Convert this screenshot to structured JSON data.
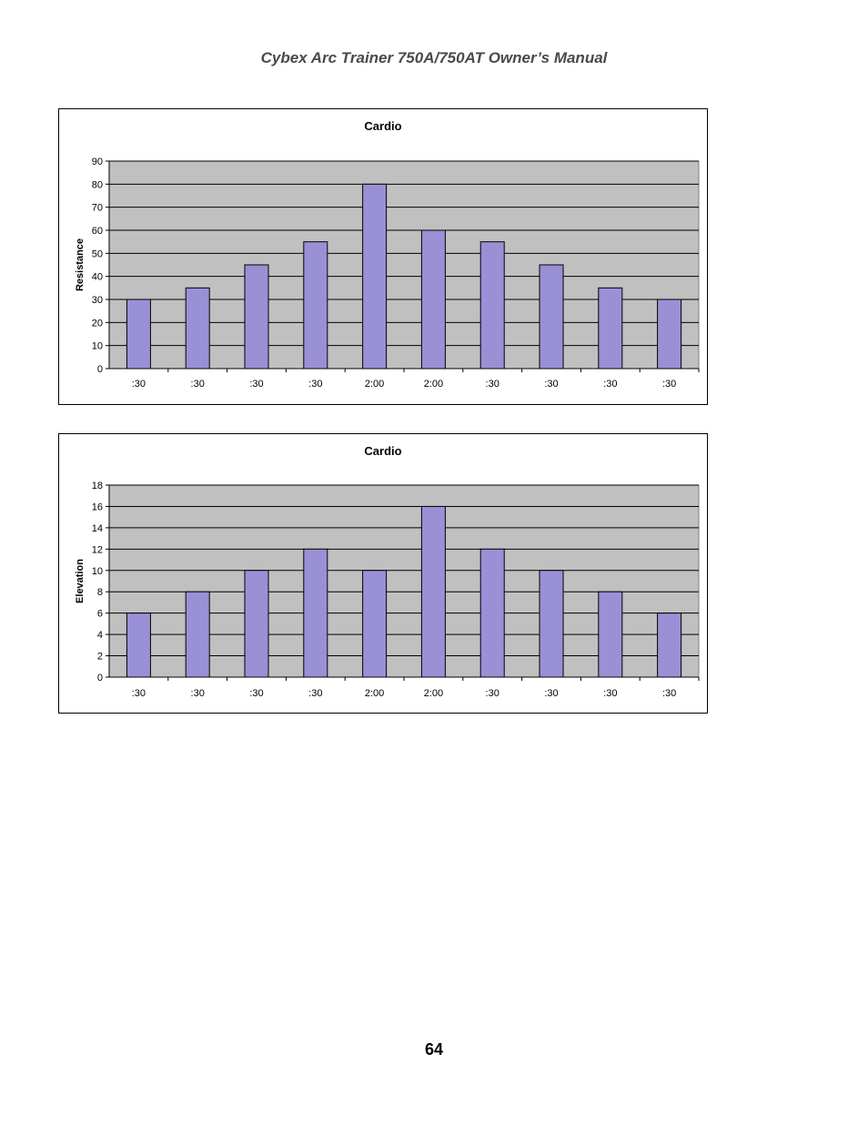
{
  "header": {
    "title": "Cybex Arc Trainer 750A/750AT Owner’s Manual"
  },
  "footer": {
    "page_number": "64"
  },
  "colors": {
    "plot_background": "#c0c0c0",
    "bar_fill": "#9a90d6",
    "bar_stroke": "#000000"
  },
  "chart_data": [
    {
      "type": "bar",
      "title": "Cardio",
      "xlabel": "",
      "ylabel": "Resistance",
      "categories": [
        ":30",
        ":30",
        ":30",
        ":30",
        "2:00",
        "2:00",
        ":30",
        ":30",
        ":30",
        ":30"
      ],
      "values": [
        30,
        35,
        45,
        55,
        80,
        60,
        55,
        45,
        35,
        30
      ],
      "ylim": [
        0,
        90
      ],
      "yticks": [
        0,
        10,
        20,
        30,
        40,
        50,
        60,
        70,
        80,
        90
      ],
      "grid": true,
      "legend": "none"
    },
    {
      "type": "bar",
      "title": "Cardio",
      "xlabel": "",
      "ylabel": "Elevation",
      "categories": [
        ":30",
        ":30",
        ":30",
        ":30",
        "2:00",
        "2:00",
        ":30",
        ":30",
        ":30",
        ":30"
      ],
      "values": [
        6,
        8,
        10,
        12,
        10,
        16,
        12,
        10,
        8,
        6
      ],
      "ylim": [
        0,
        18
      ],
      "yticks": [
        0,
        2,
        4,
        6,
        8,
        10,
        12,
        14,
        16,
        18
      ],
      "grid": true,
      "legend": "none"
    }
  ]
}
